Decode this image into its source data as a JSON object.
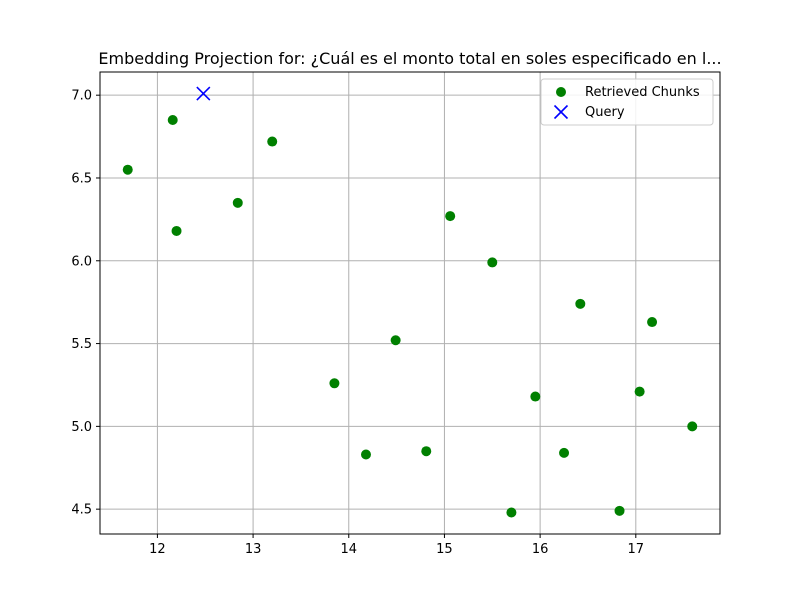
{
  "chart_data": {
    "type": "scatter",
    "title": "Embedding Projection for: ¿Cuál es el monto total en soles especificado en l...",
    "xlabel": "",
    "ylabel": "",
    "xlim": [
      11.4,
      17.88
    ],
    "ylim": [
      4.35,
      7.14
    ],
    "xticks": [
      12,
      13,
      14,
      15,
      16,
      17
    ],
    "yticks": [
      4.5,
      5.0,
      5.5,
      6.0,
      6.5,
      7.0
    ],
    "xtick_labels": [
      "12",
      "13",
      "14",
      "15",
      "16",
      "17"
    ],
    "ytick_labels": [
      "4.5",
      "5.0",
      "5.5",
      "6.0",
      "6.5",
      "7.0"
    ],
    "grid": true,
    "legend_position": "top-right",
    "series": [
      {
        "name": "Retrieved Chunks",
        "marker": "circle",
        "color": "#008000",
        "points": [
          {
            "x": 11.69,
            "y": 6.55
          },
          {
            "x": 12.16,
            "y": 6.85
          },
          {
            "x": 12.2,
            "y": 6.18
          },
          {
            "x": 12.84,
            "y": 6.35
          },
          {
            "x": 13.2,
            "y": 6.72
          },
          {
            "x": 13.85,
            "y": 5.26
          },
          {
            "x": 14.18,
            "y": 4.83
          },
          {
            "x": 14.49,
            "y": 5.52
          },
          {
            "x": 14.81,
            "y": 4.85
          },
          {
            "x": 15.06,
            "y": 6.27
          },
          {
            "x": 15.5,
            "y": 5.99
          },
          {
            "x": 15.7,
            "y": 4.48
          },
          {
            "x": 15.95,
            "y": 5.18
          },
          {
            "x": 16.25,
            "y": 4.84
          },
          {
            "x": 16.42,
            "y": 5.74
          },
          {
            "x": 16.83,
            "y": 4.49
          },
          {
            "x": 17.04,
            "y": 5.21
          },
          {
            "x": 17.17,
            "y": 5.63
          },
          {
            "x": 17.59,
            "y": 5.0
          }
        ]
      },
      {
        "name": "Query",
        "marker": "x",
        "color": "#0000ff",
        "points": [
          {
            "x": 12.48,
            "y": 7.01
          }
        ]
      }
    ]
  }
}
